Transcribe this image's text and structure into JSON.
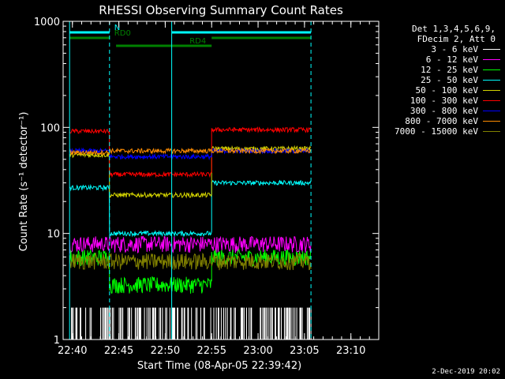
{
  "chart_data": {
    "type": "line",
    "title": "RHESSI Observing Summary Count Rates",
    "xlabel": "Start Time (08-Apr-05 22:39:42)",
    "ylabel": "Count Rate (s⁻¹ detector⁻¹)",
    "y_scale": "log",
    "xlim": [
      "22:39:00",
      "23:13:00"
    ],
    "ylim": [
      1,
      1000
    ],
    "x_ticks": [
      "22:40",
      "22:45",
      "22:50",
      "22:55",
      "23:00",
      "23:05",
      "23:10"
    ],
    "y_ticks": [
      "1",
      "10",
      "100",
      "1000"
    ],
    "legend": {
      "position": "right",
      "header": [
        "Det 1,3,4,5,6,9,",
        "FDecim 2, Att 0"
      ],
      "entries": [
        {
          "label": "3 - 6 keV",
          "color": "#ffffff"
        },
        {
          "label": "6 - 12 keV",
          "color": "#ff00ff"
        },
        {
          "label": "12 - 25 keV",
          "color": "#00ff00"
        },
        {
          "label": "25 - 50 keV",
          "color": "#00ffff"
        },
        {
          "label": "50 - 100 keV",
          "color": "#d4d400"
        },
        {
          "label": "100 - 300 keV",
          "color": "#ff0000"
        },
        {
          "label": "300 - 800 keV",
          "color": "#0000ff"
        },
        {
          "label": "800 - 7000 keV",
          "color": "#ff8c00"
        },
        {
          "label": "7000 - 15000 keV",
          "color": "#808000"
        }
      ]
    },
    "series": [
      {
        "name": "3 - 6 keV",
        "segments": [
          [
            "22:39:42",
            "23:05:42",
            1.1
          ]
        ]
      },
      {
        "name": "6 - 12 keV",
        "segments": [
          [
            "22:39:42",
            "23:05:42",
            8
          ]
        ]
      },
      {
        "name": "12 - 25 keV",
        "segments": [
          [
            "22:39:42",
            "22:44:00",
            6
          ],
          [
            "22:44:00",
            "22:55:00",
            3.3
          ],
          [
            "22:55:00",
            "23:05:42",
            6
          ]
        ]
      },
      {
        "name": "25 - 50 keV",
        "segments": [
          [
            "22:39:42",
            "22:44:00",
            27
          ],
          [
            "22:44:00",
            "22:55:00",
            10
          ],
          [
            "22:55:00",
            "23:05:42",
            30
          ]
        ]
      },
      {
        "name": "50 - 100 keV",
        "segments": [
          [
            "22:39:42",
            "22:44:00",
            55
          ],
          [
            "22:44:00",
            "22:55:00",
            23
          ],
          [
            "22:55:00",
            "23:05:42",
            63
          ]
        ]
      },
      {
        "name": "100 - 300 keV",
        "segments": [
          [
            "22:39:42",
            "22:44:00",
            92
          ],
          [
            "22:44:00",
            "22:55:00",
            36
          ],
          [
            "22:55:00",
            "23:05:42",
            95
          ]
        ]
      },
      {
        "name": "300 - 800 keV",
        "segments": [
          [
            "22:39:42",
            "22:44:00",
            60
          ],
          [
            "22:44:00",
            "22:55:00",
            53
          ],
          [
            "22:55:00",
            "23:05:42",
            60
          ]
        ]
      },
      {
        "name": "800 - 7000 keV",
        "segments": [
          [
            "22:39:42",
            "22:44:00",
            58
          ],
          [
            "22:44:00",
            "22:55:00",
            60
          ],
          [
            "22:55:00",
            "23:05:42",
            60
          ]
        ]
      },
      {
        "name": "7000 - 15000 keV",
        "segments": [
          [
            "22:39:42",
            "23:05:42",
            5.5
          ]
        ]
      }
    ],
    "flags": [
      {
        "label": "N",
        "color": "#00ffff",
        "segments": [
          [
            "22:39:42",
            "22:44:00"
          ],
          [
            "22:50:42",
            "23:05:42"
          ]
        ]
      },
      {
        "label": "RD0",
        "color": "#008000",
        "segments": [
          [
            "22:39:42",
            "22:44:00"
          ],
          [
            "22:55:00",
            "23:05:42"
          ]
        ]
      },
      {
        "label": "RD4",
        "color": "#008000",
        "segments": [
          [
            "22:44:42",
            "22:55:00"
          ]
        ]
      }
    ],
    "markers": {
      "solid": [
        "22:39:42",
        "22:50:42"
      ],
      "dashed": [
        "22:44:00",
        "23:05:42"
      ]
    }
  },
  "footer": {
    "date": "2-Dec-2019 20:02"
  }
}
